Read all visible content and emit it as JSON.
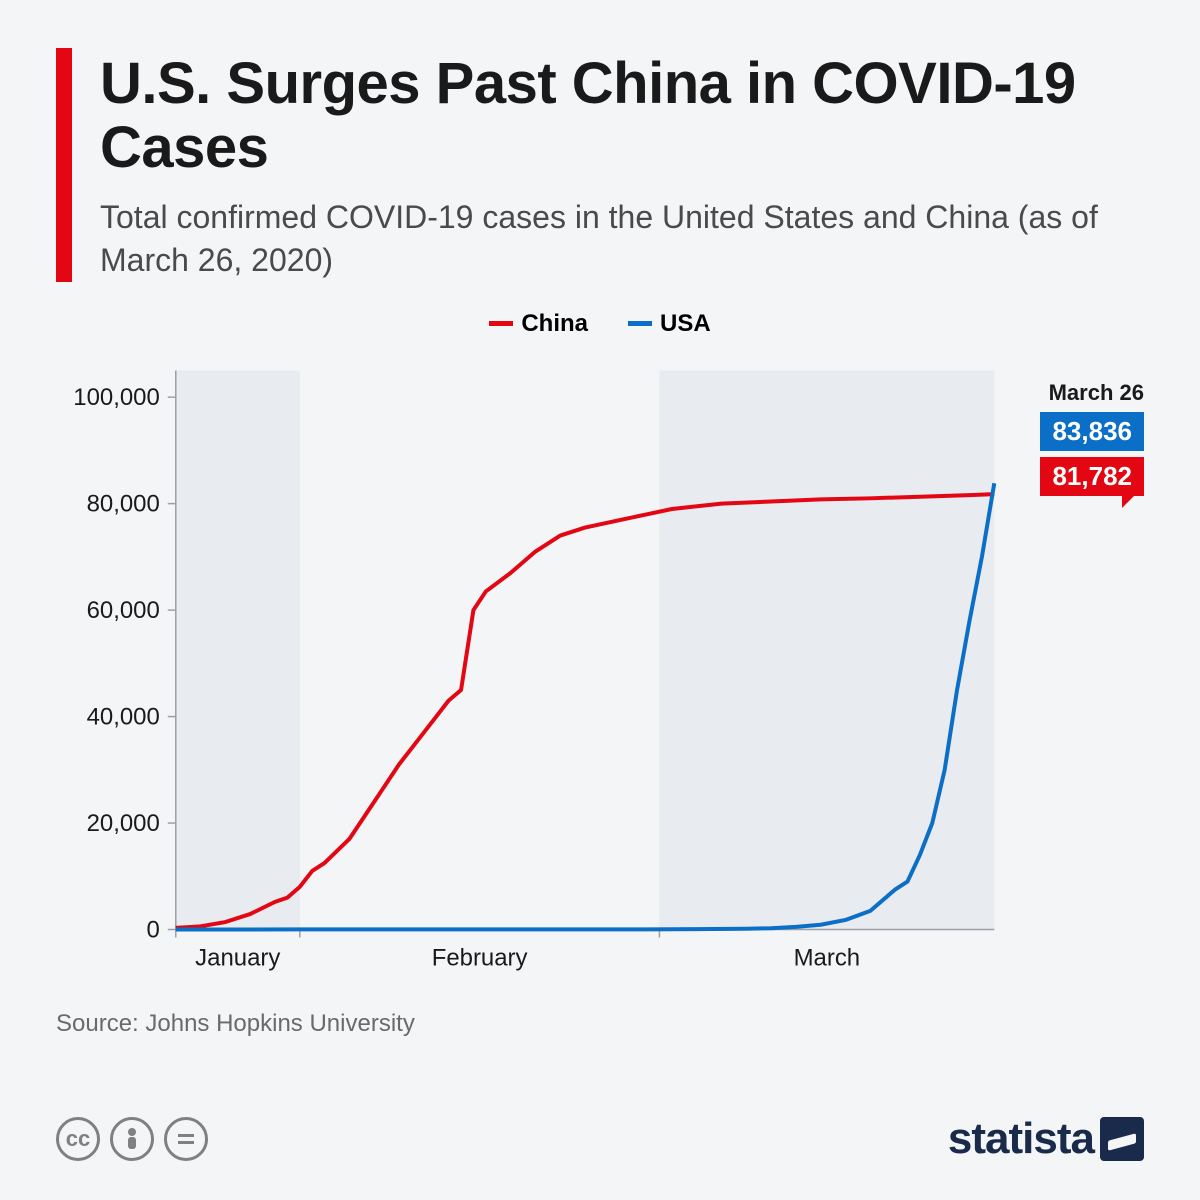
{
  "header": {
    "title": "U.S. Surges Past China in COVID-19 Cases",
    "subtitle": "Total confirmed COVID-19 cases in the United States and China (as of March 26, 2020)",
    "accent_color": "#e30613"
  },
  "legend": {
    "china": {
      "label": "China",
      "color": "#e30613"
    },
    "usa": {
      "label": "USA",
      "color": "#0b6fc7"
    }
  },
  "chart": {
    "type": "line",
    "ylim": [
      0,
      105000
    ],
    "yticks": [
      0,
      20000,
      40000,
      60000,
      80000,
      100000
    ],
    "ytick_labels": [
      "0",
      "20,000",
      "40,000",
      "60,000",
      "80,000",
      "100,000"
    ],
    "x_axis_months": [
      "January",
      "February",
      "March"
    ],
    "x_range_days": 66,
    "month_boundaries_day": [
      0,
      10,
      39,
      66
    ],
    "alt_band_color": "#e8ebef",
    "background_color": "#f3f5f7",
    "axis_color": "#9aa0a6",
    "line_width": 4,
    "china_series_day_value": [
      [
        0,
        300
      ],
      [
        2,
        600
      ],
      [
        4,
        1400
      ],
      [
        6,
        2900
      ],
      [
        8,
        5200
      ],
      [
        9,
        6000
      ],
      [
        10,
        8000
      ],
      [
        11,
        11000
      ],
      [
        12,
        12500
      ],
      [
        14,
        17000
      ],
      [
        16,
        24000
      ],
      [
        18,
        31000
      ],
      [
        20,
        37000
      ],
      [
        22,
        43000
      ],
      [
        23,
        45000
      ],
      [
        24,
        60000
      ],
      [
        25,
        63500
      ],
      [
        27,
        67000
      ],
      [
        29,
        71000
      ],
      [
        31,
        74000
      ],
      [
        33,
        75500
      ],
      [
        36,
        77000
      ],
      [
        38,
        78000
      ],
      [
        40,
        79000
      ],
      [
        44,
        80000
      ],
      [
        48,
        80400
      ],
      [
        52,
        80800
      ],
      [
        56,
        81000
      ],
      [
        60,
        81300
      ],
      [
        64,
        81600
      ],
      [
        66,
        81782
      ]
    ],
    "usa_series_day_value": [
      [
        0,
        5
      ],
      [
        10,
        10
      ],
      [
        20,
        15
      ],
      [
        30,
        20
      ],
      [
        38,
        30
      ],
      [
        42,
        70
      ],
      [
        46,
        150
      ],
      [
        48,
        250
      ],
      [
        50,
        500
      ],
      [
        52,
        900
      ],
      [
        54,
        1800
      ],
      [
        56,
        3500
      ],
      [
        58,
        7500
      ],
      [
        59,
        9000
      ],
      [
        60,
        14000
      ],
      [
        61,
        20000
      ],
      [
        62,
        30000
      ],
      [
        63,
        45000
      ],
      [
        64,
        58000
      ],
      [
        65,
        70000
      ],
      [
        66,
        83836
      ]
    ],
    "callout": {
      "date_label": "March 26",
      "usa_value": "83,836",
      "china_value": "81,782"
    }
  },
  "source": "Source: Johns Hopkins University",
  "footer": {
    "brand": "statista",
    "brand_color": "#1a2a4a",
    "cc_icons": [
      "cc",
      "by",
      "nd"
    ]
  }
}
